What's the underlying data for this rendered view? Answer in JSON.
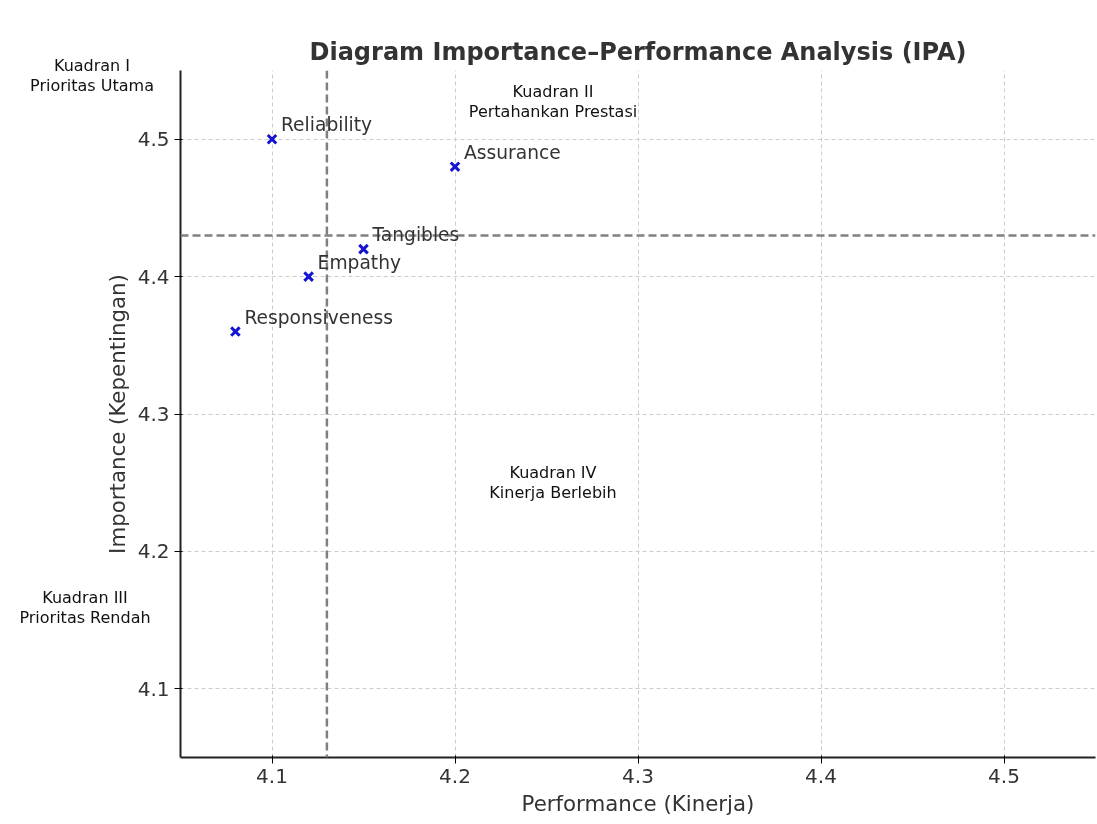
{
  "chart_data": {
    "type": "scatter",
    "title": "Diagram Importance–Performance Analysis (IPA)",
    "xlabel": "Performance (Kinerja)",
    "ylabel": "Importance (Kepentingan)",
    "x": [
      4.1,
      4.2,
      4.15,
      4.12,
      4.08
    ],
    "series": [
      {
        "color": "#1414d2",
        "values": [
          4.5,
          4.48,
          4.42,
          4.4,
          4.36
        ]
      }
    ],
    "marker": "cross",
    "grid": true,
    "xlim": [
      4.05,
      4.55
    ],
    "ylim": [
      4.05,
      4.55
    ],
    "xticks": [
      4.1,
      4.2,
      4.3,
      4.4,
      4.5
    ],
    "yticks": [
      4.1,
      4.2,
      4.3,
      4.4,
      4.5
    ],
    "ref_lines": [
      {
        "axis": "x",
        "value": 4.13,
        "color": "#808080",
        "line_style": "dashed"
      },
      {
        "axis": "y",
        "value": 4.43,
        "color": "#808080",
        "line_style": "dashed"
      }
    ],
    "annotations": [
      {
        "text": "Reliability",
        "x": 4.1,
        "y": 4.5
      },
      {
        "text": "Assurance",
        "x": 4.2,
        "y": 4.48
      },
      {
        "text": "Tangibles",
        "x": 4.15,
        "y": 4.42
      },
      {
        "text": "Empathy",
        "x": 4.12,
        "y": 4.4
      },
      {
        "text": "Responsiveness",
        "x": 4.08,
        "y": 4.36
      },
      "Kuadran I\nPrioritas Utama",
      "Kuadran II\nPertahankan Prestasi",
      "Kuadran III\nPrioritas Rendah",
      "Kuadran IV\nKinerja Berlebih"
    ]
  }
}
